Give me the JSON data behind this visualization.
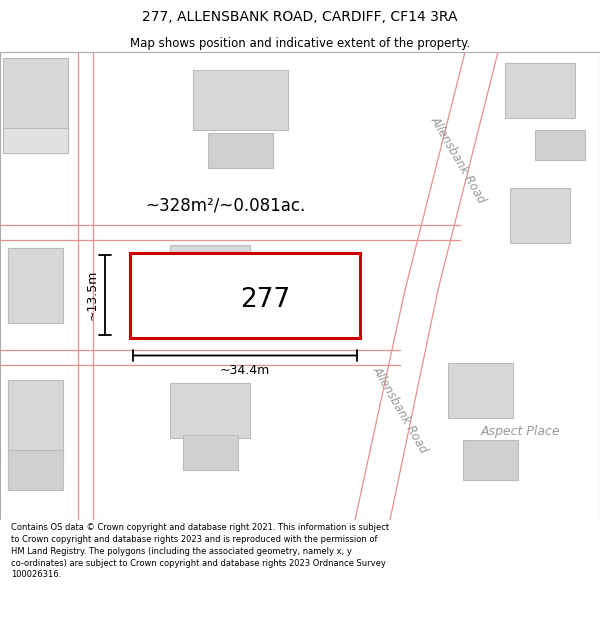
{
  "title_line1": "277, ALLENSBANK ROAD, CARDIFF, CF14 3RA",
  "title_line2": "Map shows position and indicative extent of the property.",
  "footer_text": "Contains OS data © Crown copyright and database right 2021. This information is subject to Crown copyright and database rights 2023 and is reproduced with the permission of HM Land Registry. The polygons (including the associated geometry, namely x, y co-ordinates) are subject to Crown copyright and database rights 2023 Ordnance Survey 100026316.",
  "map_bg": "#f8f8f8",
  "building_fill": "#d8d8d8",
  "building_edge": "#bbbbbb",
  "road_line_color": "#e89090",
  "property_fill": "#ffffff",
  "property_edge": "#cc0000",
  "property_edge_width": 2.2,
  "area_text": "~328m²/~0.081ac.",
  "width_text": "~34.4m",
  "height_text": "~13.5m",
  "number_text": "277",
  "road_label_upper": "Allensbank Road",
  "road_label_lower": "Allensbank Road",
  "place_label": "Aspect Place",
  "title_fontsize": 10,
  "subtitle_fontsize": 8.5,
  "footer_fontsize": 6.0
}
